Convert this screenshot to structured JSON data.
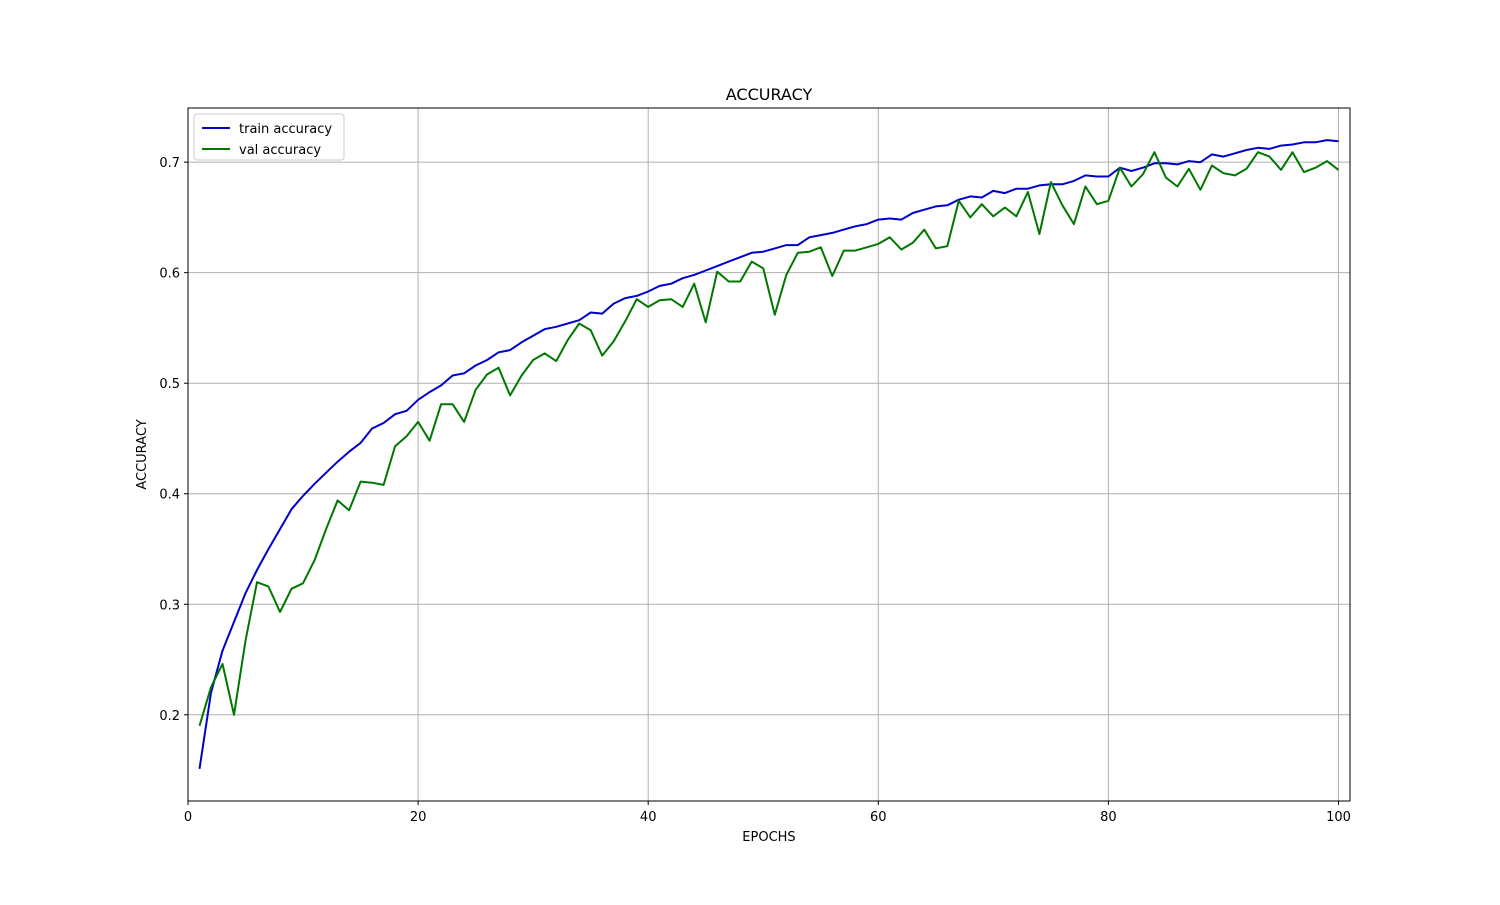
{
  "chart_data": {
    "type": "line",
    "title": "ACCURACY",
    "xlabel": "EPOCHS",
    "ylabel": "ACCURACY",
    "xlim": [
      0,
      101
    ],
    "ylim": [
      0.122,
      0.749
    ],
    "xticks": [
      0,
      20,
      40,
      60,
      80,
      100
    ],
    "yticks": [
      0.2,
      0.3,
      0.4,
      0.5,
      0.6,
      0.7
    ],
    "grid": true,
    "legend_position": "top-left",
    "x": [
      1,
      2,
      3,
      4,
      5,
      6,
      7,
      8,
      9,
      10,
      11,
      12,
      13,
      14,
      15,
      16,
      17,
      18,
      19,
      20,
      21,
      22,
      23,
      24,
      25,
      26,
      27,
      28,
      29,
      30,
      31,
      32,
      33,
      34,
      35,
      36,
      37,
      38,
      39,
      40,
      41,
      42,
      43,
      44,
      45,
      46,
      47,
      48,
      49,
      50,
      51,
      52,
      53,
      54,
      55,
      56,
      57,
      58,
      59,
      60,
      61,
      62,
      63,
      64,
      65,
      66,
      67,
      68,
      69,
      70,
      71,
      72,
      73,
      74,
      75,
      76,
      77,
      78,
      79,
      80,
      81,
      82,
      83,
      84,
      85,
      86,
      87,
      88,
      89,
      90,
      91,
      92,
      93,
      94,
      95,
      96,
      97,
      98,
      99,
      100
    ],
    "series": [
      {
        "name": "train accuracy",
        "color": "#0000cc",
        "values": [
          0.151,
          0.22,
          0.258,
          0.284,
          0.31,
          0.331,
          0.35,
          0.368,
          0.386,
          0.398,
          0.409,
          0.419,
          0.429,
          0.438,
          0.446,
          0.459,
          0.464,
          0.472,
          0.475,
          0.485,
          0.492,
          0.498,
          0.507,
          0.509,
          0.516,
          0.521,
          0.528,
          0.53,
          0.537,
          0.543,
          0.549,
          0.551,
          0.554,
          0.557,
          0.564,
          0.563,
          0.572,
          0.577,
          0.579,
          0.583,
          0.588,
          0.59,
          0.595,
          0.598,
          0.602,
          0.606,
          0.61,
          0.614,
          0.618,
          0.619,
          0.622,
          0.625,
          0.625,
          0.632,
          0.634,
          0.636,
          0.639,
          0.642,
          0.644,
          0.648,
          0.649,
          0.648,
          0.654,
          0.657,
          0.66,
          0.661,
          0.666,
          0.669,
          0.668,
          0.674,
          0.672,
          0.676,
          0.676,
          0.679,
          0.68,
          0.68,
          0.683,
          0.688,
          0.687,
          0.687,
          0.695,
          0.692,
          0.695,
          0.699,
          0.699,
          0.698,
          0.701,
          0.7,
          0.707,
          0.705,
          0.708,
          0.711,
          0.713,
          0.712,
          0.715,
          0.716,
          0.718,
          0.718,
          0.72,
          0.719
        ]
      },
      {
        "name": "val accuracy",
        "color": "#007700",
        "values": [
          0.19,
          0.225,
          0.246,
          0.2,
          0.267,
          0.32,
          0.316,
          0.293,
          0.314,
          0.319,
          0.34,
          0.368,
          0.394,
          0.385,
          0.411,
          0.41,
          0.408,
          0.443,
          0.452,
          0.465,
          0.448,
          0.481,
          0.481,
          0.465,
          0.494,
          0.508,
          0.514,
          0.489,
          0.507,
          0.521,
          0.527,
          0.52,
          0.539,
          0.554,
          0.548,
          0.525,
          0.538,
          0.556,
          0.576,
          0.569,
          0.575,
          0.576,
          0.569,
          0.59,
          0.555,
          0.601,
          0.592,
          0.592,
          0.61,
          0.604,
          0.562,
          0.598,
          0.618,
          0.619,
          0.623,
          0.597,
          0.62,
          0.62,
          0.623,
          0.626,
          0.632,
          0.621,
          0.627,
          0.639,
          0.622,
          0.624,
          0.665,
          0.65,
          0.662,
          0.651,
          0.659,
          0.651,
          0.673,
          0.635,
          0.682,
          0.661,
          0.644,
          0.678,
          0.662,
          0.665,
          0.695,
          0.678,
          0.689,
          0.709,
          0.686,
          0.678,
          0.694,
          0.675,
          0.697,
          0.69,
          0.688,
          0.694,
          0.709,
          0.705,
          0.693,
          0.709,
          0.691,
          0.695,
          0.701,
          0.693
        ]
      }
    ]
  }
}
